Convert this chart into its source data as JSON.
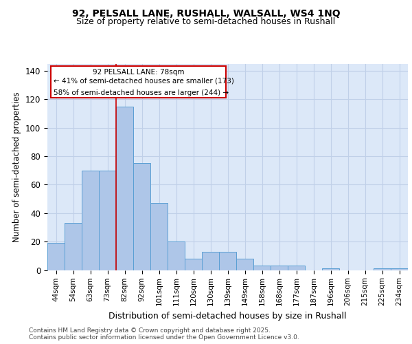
{
  "title1": "92, PELSALL LANE, RUSHALL, WALSALL, WS4 1NQ",
  "title2": "Size of property relative to semi-detached houses in Rushall",
  "xlabel": "Distribution of semi-detached houses by size in Rushall",
  "ylabel": "Number of semi-detached properties",
  "categories": [
    "44sqm",
    "54sqm",
    "63sqm",
    "73sqm",
    "82sqm",
    "92sqm",
    "101sqm",
    "111sqm",
    "120sqm",
    "130sqm",
    "139sqm",
    "149sqm",
    "158sqm",
    "168sqm",
    "177sqm",
    "187sqm",
    "196sqm",
    "206sqm",
    "215sqm",
    "225sqm",
    "234sqm"
  ],
  "values": [
    19,
    33,
    70,
    70,
    115,
    75,
    47,
    20,
    8,
    13,
    13,
    8,
    3,
    3,
    3,
    0,
    1,
    0,
    0,
    1,
    1
  ],
  "bar_color": "#aec6e8",
  "bar_edge_color": "#5a9fd4",
  "property_line_x": 3.5,
  "annotation_title": "92 PELSALL LANE: 78sqm",
  "annotation_line1": "← 41% of semi-detached houses are smaller (173)",
  "annotation_line2": "58% of semi-detached houses are larger (244) →",
  "annotation_box_color": "#cc0000",
  "ylim": [
    0,
    145
  ],
  "yticks": [
    0,
    20,
    40,
    60,
    80,
    100,
    120,
    140
  ],
  "grid_color": "#c0d0e8",
  "bg_color": "#dce8f8",
  "footnote1": "Contains HM Land Registry data © Crown copyright and database right 2025.",
  "footnote2": "Contains public sector information licensed under the Open Government Licence v3.0."
}
